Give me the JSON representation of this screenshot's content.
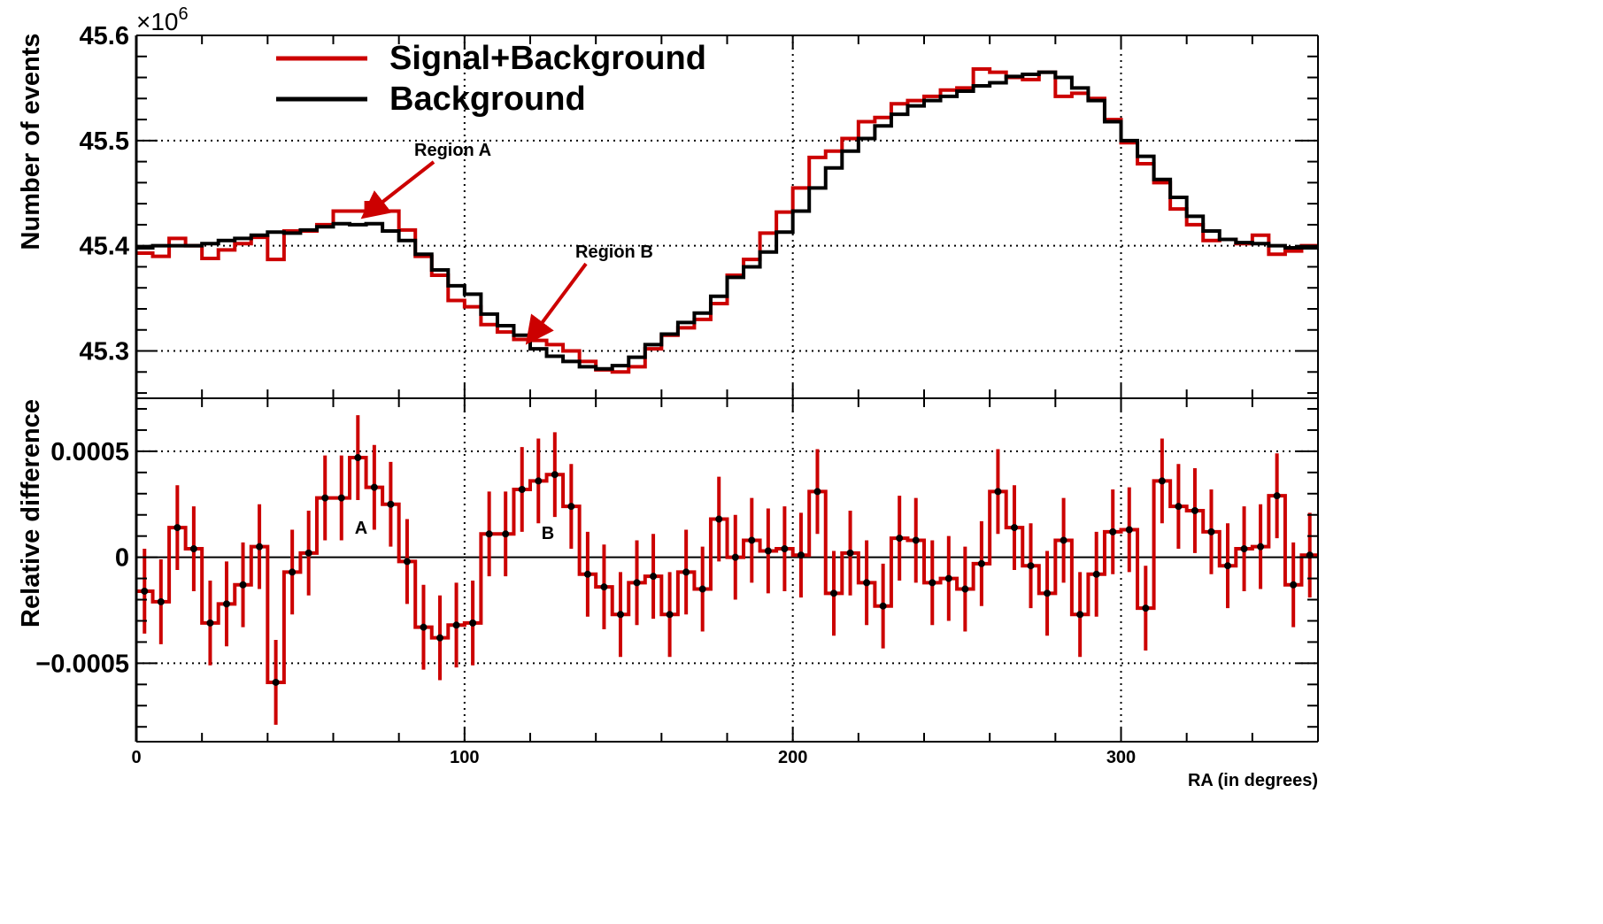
{
  "colors": {
    "signal": "#cc0000",
    "background": "#000000",
    "arrow": "#cc0000",
    "grid": "#000000",
    "marker": "#000000"
  },
  "chart_data": [
    {
      "type": "line",
      "style": "step histogram",
      "ylabel": "Number of events",
      "y_multiplier": "×10",
      "y_multiplier_exp": "6",
      "xlim": [
        0,
        360
      ],
      "ylim": [
        45.255,
        45.6
      ],
      "yticks": [
        "45.3",
        "45.4",
        "45.5",
        "45.6"
      ],
      "grid": true,
      "legend_placement": "top-left",
      "bin_width": 5,
      "x": [
        0,
        5,
        10,
        15,
        20,
        25,
        30,
        35,
        40,
        45,
        50,
        55,
        60,
        65,
        70,
        75,
        80,
        85,
        90,
        95,
        100,
        105,
        110,
        115,
        120,
        125,
        130,
        135,
        140,
        145,
        150,
        155,
        160,
        165,
        170,
        175,
        180,
        185,
        190,
        195,
        200,
        205,
        210,
        215,
        220,
        225,
        230,
        235,
        240,
        245,
        250,
        255,
        260,
        265,
        270,
        275,
        280,
        285,
        290,
        295,
        300,
        305,
        310,
        315,
        320,
        325,
        330,
        335,
        340,
        345,
        350,
        355
      ],
      "series": [
        {
          "name": "Signal+Background",
          "values": [
            45.393,
            45.39,
            45.407,
            45.4,
            45.388,
            45.396,
            45.402,
            45.408,
            45.387,
            45.414,
            45.414,
            45.42,
            45.433,
            45.433,
            45.441,
            45.433,
            45.415,
            45.39,
            45.372,
            45.348,
            45.342,
            45.325,
            45.318,
            45.311,
            45.31,
            45.306,
            45.3,
            45.29,
            45.282,
            45.28,
            45.285,
            45.302,
            45.315,
            45.322,
            45.33,
            45.345,
            45.372,
            45.387,
            45.412,
            45.432,
            45.455,
            45.484,
            45.49,
            45.502,
            45.518,
            45.522,
            45.535,
            45.538,
            45.542,
            45.548,
            45.55,
            45.568,
            45.565,
            45.56,
            45.558,
            45.565,
            45.542,
            45.545,
            45.54,
            45.52,
            45.498,
            45.478,
            45.46,
            45.435,
            45.42,
            45.405,
            45.406,
            45.402,
            45.41,
            45.392,
            45.395,
            45.4
          ]
        },
        {
          "name": "Background",
          "values": [
            45.398,
            45.4,
            45.4,
            45.4,
            45.402,
            45.405,
            45.407,
            45.41,
            45.413,
            45.412,
            45.415,
            45.418,
            45.421,
            45.42,
            45.421,
            45.414,
            45.405,
            45.392,
            45.377,
            45.362,
            45.354,
            45.335,
            45.324,
            45.315,
            45.302,
            45.295,
            45.29,
            45.285,
            45.283,
            45.286,
            45.294,
            45.306,
            45.316,
            45.327,
            45.336,
            45.352,
            45.37,
            45.38,
            45.394,
            45.413,
            45.433,
            45.455,
            45.474,
            45.49,
            45.502,
            45.514,
            45.525,
            45.533,
            45.538,
            45.542,
            45.547,
            45.552,
            45.555,
            45.561,
            45.563,
            45.565,
            45.56,
            45.55,
            45.538,
            45.518,
            45.5,
            45.485,
            45.463,
            45.446,
            45.428,
            45.414,
            45.406,
            45.403,
            45.402,
            45.4,
            45.398,
            45.398
          ]
        }
      ],
      "annotations": [
        "Region A",
        "Region B"
      ]
    },
    {
      "type": "scatter",
      "style": "step histogram with error bars",
      "ylabel": "Relative difference",
      "xlabel": "RA (in degrees)",
      "xlim": [
        0,
        360
      ],
      "ylim": [
        -0.00087,
        0.00075
      ],
      "yticks": [
        "−0.0005",
        "0",
        "0.0005"
      ],
      "xticks": [
        "0",
        "100",
        "200",
        "300"
      ],
      "grid": true,
      "bin_width": 5,
      "x": [
        0,
        5,
        10,
        15,
        20,
        25,
        30,
        35,
        40,
        45,
        50,
        55,
        60,
        65,
        70,
        75,
        80,
        85,
        90,
        95,
        100,
        105,
        110,
        115,
        120,
        125,
        130,
        135,
        140,
        145,
        150,
        155,
        160,
        165,
        170,
        175,
        180,
        185,
        190,
        195,
        200,
        205,
        210,
        215,
        220,
        225,
        230,
        235,
        240,
        245,
        250,
        255,
        260,
        265,
        270,
        275,
        280,
        285,
        290,
        295,
        300,
        305,
        310,
        315,
        320,
        325,
        330,
        335,
        340,
        345,
        350,
        355
      ],
      "values": [
        -0.00016,
        -0.00021,
        0.00014,
        4e-05,
        -0.00031,
        -0.00022,
        -0.00013,
        5e-05,
        -0.00059,
        -7e-05,
        2e-05,
        0.00028,
        0.00028,
        0.00047,
        0.00033,
        0.00025,
        -2e-05,
        -0.00033,
        -0.00038,
        -0.00032,
        -0.00031,
        0.00011,
        0.00011,
        0.00032,
        0.00036,
        0.00039,
        0.00024,
        -8e-05,
        -0.00014,
        -0.00027,
        -0.00012,
        -9e-05,
        -0.00027,
        -7e-05,
        -0.00015,
        0.00018,
        0,
        8e-05,
        3e-05,
        4e-05,
        1e-05,
        0.00031,
        -0.00017,
        2e-05,
        -0.00012,
        -0.00023,
        9e-05,
        8e-05,
        -0.00012,
        -0.0001,
        -0.00015,
        -3e-05,
        0.00031,
        0.00014,
        -4e-05,
        -0.00017,
        8e-05,
        -0.00027,
        -8e-05,
        0.00012,
        0.00013,
        -0.00024,
        0.00036,
        0.00024,
        0.00022,
        0.00012,
        -4e-05,
        4e-05,
        5e-05,
        0.00029,
        -0.00013,
        1e-05
      ],
      "error": 0.0002,
      "labels": [
        "A",
        "B"
      ]
    }
  ]
}
